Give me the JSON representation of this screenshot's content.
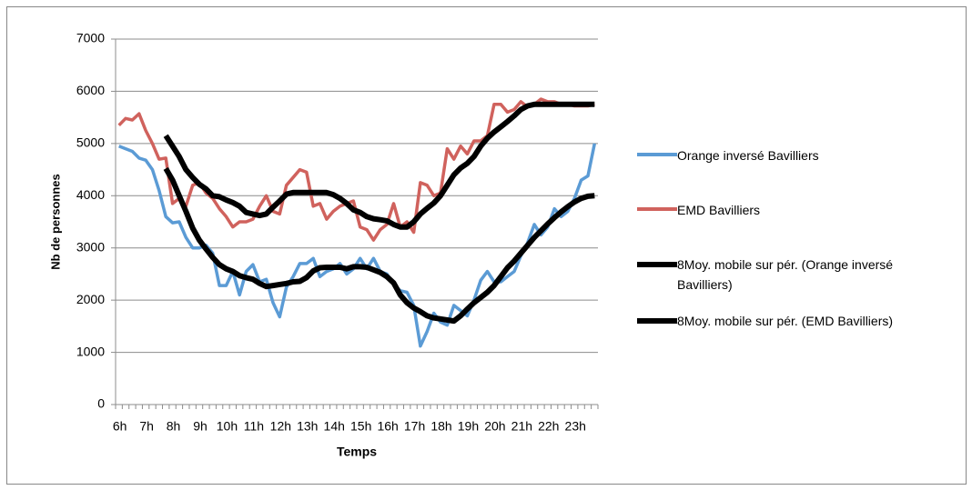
{
  "chart_data": {
    "type": "line",
    "x_label": "Temps",
    "y_label": "Nb de personnes",
    "categories": [
      "6h",
      null,
      null,
      null,
      "7h",
      null,
      null,
      null,
      "8h",
      null,
      null,
      null,
      "9h",
      null,
      null,
      null,
      "10h",
      null,
      null,
      null,
      "11h",
      null,
      null,
      null,
      "12h",
      null,
      null,
      null,
      "13h",
      null,
      null,
      null,
      "14h",
      null,
      null,
      null,
      "15h",
      null,
      null,
      null,
      "16h",
      null,
      null,
      null,
      "17h",
      null,
      null,
      null,
      "18h",
      null,
      null,
      null,
      "19h",
      null,
      null,
      null,
      "20h",
      null,
      null,
      null,
      "21h",
      null,
      null,
      null,
      "22h",
      null,
      null,
      null,
      "23h",
      null,
      null,
      null
    ],
    "ylim": [
      0,
      7000
    ],
    "yticks": [
      0,
      1000,
      2000,
      3000,
      4000,
      5000,
      6000,
      7000
    ],
    "grid": true,
    "legend": "right",
    "series": [
      {
        "name": "Orange inversé Bavilliers",
        "color": "#5b9bd5",
        "values": [
          4950,
          4900,
          4850,
          4720,
          4680,
          4500,
          4100,
          3600,
          3480,
          3500,
          3200,
          3000,
          3000,
          3050,
          2900,
          2280,
          2280,
          2550,
          2100,
          2550,
          2680,
          2350,
          2400,
          1950,
          1680,
          2250,
          2450,
          2700,
          2700,
          2800,
          2450,
          2550,
          2600,
          2700,
          2500,
          2600,
          2800,
          2600,
          2800,
          2550,
          2500,
          2300,
          2180,
          2150,
          1900,
          1120,
          1400,
          1750,
          1580,
          1520,
          1900,
          1800,
          1700,
          2000,
          2380,
          2550,
          2350,
          2350,
          2450,
          2550,
          2850,
          3100,
          3450,
          3250,
          3400,
          3750,
          3600,
          3700,
          3950,
          4300,
          4380,
          5000
        ]
      },
      {
        "name": "EMD Bavilliers",
        "color": "#d0625d",
        "values": [
          5350,
          5480,
          5450,
          5570,
          5250,
          5000,
          4700,
          4720,
          3850,
          3950,
          3800,
          4200,
          4250,
          4050,
          3950,
          3750,
          3600,
          3400,
          3500,
          3500,
          3550,
          3800,
          4000,
          3700,
          3650,
          4200,
          4350,
          4500,
          4450,
          3800,
          3850,
          3550,
          3700,
          3800,
          3850,
          3900,
          3400,
          3350,
          3150,
          3350,
          3450,
          3850,
          3400,
          3500,
          3300,
          4250,
          4200,
          4000,
          4050,
          4900,
          4700,
          4950,
          4800,
          5050,
          5050,
          5150,
          5750,
          5750,
          5600,
          5650,
          5800,
          5700,
          5750,
          5850,
          5800,
          5800,
          5750,
          5750,
          5720,
          5720,
          5720,
          5750
        ]
      },
      {
        "name": "8Moy. mobile sur pér. (Orange inversé Bavilliers)",
        "color": "#000000",
        "values": [
          null,
          null,
          null,
          null,
          null,
          null,
          null,
          4520,
          4300,
          4000,
          3700,
          3380,
          3150,
          2980,
          2820,
          2680,
          2600,
          2550,
          2470,
          2430,
          2400,
          2320,
          2260,
          2280,
          2300,
          2320,
          2350,
          2360,
          2430,
          2560,
          2620,
          2630,
          2630,
          2630,
          2600,
          2640,
          2640,
          2630,
          2580,
          2530,
          2450,
          2330,
          2100,
          1950,
          1850,
          1780,
          1700,
          1660,
          1640,
          1620,
          1600,
          1700,
          1830,
          1950,
          2050,
          2150,
          2280,
          2450,
          2620,
          2750,
          2900,
          3050,
          3200,
          3330,
          3460,
          3580,
          3690,
          3790,
          3880,
          3950,
          3990,
          4000
        ]
      },
      {
        "name": "8Moy. mobile sur pér. (EMD Bavilliers)",
        "color": "#000000",
        "values": [
          null,
          null,
          null,
          null,
          null,
          null,
          null,
          5150,
          4950,
          4750,
          4500,
          4350,
          4220,
          4130,
          4000,
          3980,
          3920,
          3870,
          3800,
          3680,
          3650,
          3620,
          3650,
          3780,
          3900,
          4030,
          4060,
          4060,
          4060,
          4060,
          4060,
          4060,
          4020,
          3950,
          3850,
          3730,
          3680,
          3600,
          3560,
          3540,
          3520,
          3450,
          3400,
          3400,
          3500,
          3650,
          3760,
          3860,
          4000,
          4200,
          4400,
          4530,
          4620,
          4750,
          4950,
          5100,
          5220,
          5320,
          5420,
          5530,
          5650,
          5720,
          5750,
          5750,
          5750,
          5750,
          5750,
          5750,
          5750,
          5750,
          5750,
          5750
        ]
      }
    ]
  }
}
